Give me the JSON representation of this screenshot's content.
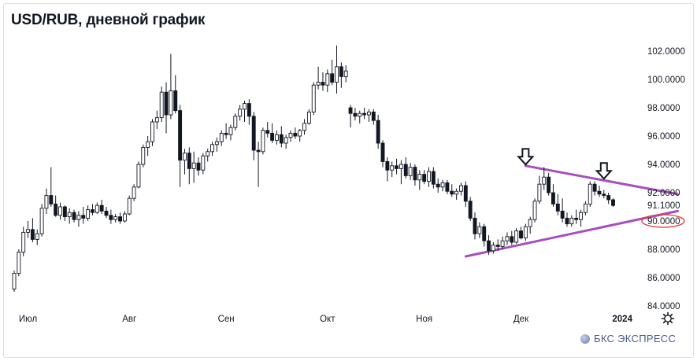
{
  "title": "USD/RUB, дневной график",
  "brand": "БКС ЭКСПРЕСС",
  "icons": {
    "settings": "gear-icon",
    "brand_logo": "bks-logo-icon",
    "marker": "down-arrow-icon"
  },
  "colors": {
    "up": "#ffffff",
    "down": "#131722",
    "trendline": "#a64fbd",
    "highlight": "#e03a3a",
    "grid": "#f0f3fa"
  },
  "chart_data": {
    "type": "candlestick",
    "title": "USD/RUB, дневной график",
    "ylim": [
      84,
      103
    ],
    "y_ticks": [
      "102.0000",
      "100.0000",
      "98.0000",
      "96.0000",
      "94.0000",
      "92.0000",
      "91.1000",
      "90.0000",
      "88.0000",
      "86.0000",
      "84.0000"
    ],
    "highlighted_tick": "90.0000",
    "x_labels": [
      "Июл",
      "Авг",
      "Сен",
      "Окт",
      "Ноя",
      "Дек",
      "2024"
    ],
    "x_label_index": [
      3,
      25,
      46,
      68,
      89,
      110,
      132
    ],
    "candles": [
      [
        85.2,
        86.5,
        85.0,
        86.3
      ],
      [
        86.3,
        88.0,
        86.1,
        87.8
      ],
      [
        87.8,
        89.6,
        87.5,
        89.2
      ],
      [
        89.2,
        90.0,
        88.8,
        89.4
      ],
      [
        89.4,
        90.2,
        88.5,
        88.7
      ],
      [
        88.7,
        89.4,
        88.3,
        89.1
      ],
      [
        89.1,
        91.2,
        88.9,
        90.9
      ],
      [
        90.9,
        92.3,
        90.5,
        91.8
      ],
      [
        91.8,
        93.8,
        91.0,
        91.2
      ],
      [
        91.2,
        91.8,
        90.3,
        90.4
      ],
      [
        90.4,
        91.3,
        90.1,
        91.0
      ],
      [
        91.0,
        91.1,
        90.0,
        90.3
      ],
      [
        90.3,
        90.9,
        89.8,
        90.6
      ],
      [
        90.6,
        90.8,
        89.9,
        90.1
      ],
      [
        90.1,
        90.7,
        89.6,
        90.4
      ],
      [
        90.4,
        91.0,
        89.8,
        90.2
      ],
      [
        90.2,
        91.1,
        90.0,
        90.8
      ],
      [
        90.8,
        91.2,
        90.4,
        90.6
      ],
      [
        90.6,
        91.3,
        90.5,
        91.1
      ],
      [
        91.1,
        91.5,
        90.5,
        90.7
      ],
      [
        90.7,
        91.0,
        90.2,
        90.4
      ],
      [
        90.4,
        90.8,
        89.8,
        90.1
      ],
      [
        90.1,
        90.5,
        89.9,
        90.3
      ],
      [
        90.3,
        90.6,
        89.8,
        90.0
      ],
      [
        90.0,
        90.7,
        89.9,
        90.5
      ],
      [
        90.5,
        91.8,
        90.4,
        91.6
      ],
      [
        91.6,
        92.6,
        91.4,
        92.4
      ],
      [
        92.4,
        94.2,
        92.3,
        94.0
      ],
      [
        94.0,
        95.4,
        93.8,
        95.2
      ],
      [
        95.2,
        96.0,
        94.6,
        95.6
      ],
      [
        95.6,
        97.2,
        95.3,
        97.0
      ],
      [
        97.0,
        97.8,
        96.5,
        97.3
      ],
      [
        97.3,
        99.5,
        97.0,
        99.1
      ],
      [
        99.1,
        99.8,
        96.2,
        97.5
      ],
      [
        97.5,
        101.8,
        97.2,
        99.2
      ],
      [
        99.2,
        100.3,
        97.6,
        97.8
      ],
      [
        97.8,
        98.2,
        92.4,
        94.3
      ],
      [
        94.3,
        95.1,
        93.3,
        94.8
      ],
      [
        94.8,
        95.2,
        92.6,
        93.7
      ],
      [
        93.7,
        94.9,
        92.7,
        94.1
      ],
      [
        94.1,
        94.5,
        93.2,
        93.6
      ],
      [
        93.6,
        94.8,
        93.3,
        94.6
      ],
      [
        94.6,
        95.1,
        94.2,
        94.9
      ],
      [
        94.9,
        95.6,
        94.6,
        95.4
      ],
      [
        95.4,
        95.9,
        94.9,
        95.6
      ],
      [
        95.6,
        96.4,
        95.3,
        96.2
      ],
      [
        96.2,
        96.9,
        95.8,
        96.1
      ],
      [
        96.1,
        96.8,
        95.7,
        96.6
      ],
      [
        96.6,
        97.6,
        96.4,
        97.4
      ],
      [
        97.4,
        98.2,
        97.1,
        97.9
      ],
      [
        97.9,
        98.5,
        97.0,
        98.3
      ],
      [
        98.3,
        98.6,
        96.8,
        97.4
      ],
      [
        97.4,
        97.7,
        94.3,
        95.0
      ],
      [
        95.0,
        95.6,
        92.4,
        94.9
      ],
      [
        94.9,
        96.6,
        94.7,
        96.4
      ],
      [
        96.4,
        97.0,
        95.9,
        96.2
      ],
      [
        96.2,
        96.9,
        95.5,
        95.7
      ],
      [
        95.7,
        96.4,
        95.4,
        96.1
      ],
      [
        96.1,
        96.7,
        95.2,
        95.5
      ],
      [
        95.5,
        96.1,
        95.1,
        95.9
      ],
      [
        95.9,
        96.4,
        95.6,
        96.2
      ],
      [
        96.2,
        96.6,
        95.8,
        96.0
      ],
      [
        96.0,
        96.5,
        95.6,
        96.4
      ],
      [
        96.4,
        97.2,
        96.1,
        96.9
      ],
      [
        96.9,
        97.9,
        96.8,
        97.7
      ],
      [
        97.7,
        99.8,
        97.5,
        99.6
      ],
      [
        99.6,
        100.9,
        99.3,
        99.8
      ],
      [
        99.8,
        100.5,
        99.2,
        99.6
      ],
      [
        99.6,
        100.7,
        99.1,
        100.4
      ],
      [
        100.4,
        101.4,
        99.6,
        99.8
      ],
      [
        99.8,
        102.4,
        99.0,
        100.9
      ],
      [
        100.9,
        101.2,
        99.4,
        100.2
      ],
      [
        100.2,
        101.0,
        99.8,
        100.6
      ],
      [
        98.0,
        98.2,
        96.6,
        97.6
      ],
      [
        97.6,
        98.0,
        97.1,
        97.4
      ],
      [
        97.4,
        97.8,
        96.9,
        97.6
      ],
      [
        97.6,
        98.0,
        97.2,
        97.5
      ],
      [
        97.5,
        97.9,
        97.0,
        97.7
      ],
      [
        97.7,
        97.9,
        96.8,
        97.1
      ],
      [
        97.1,
        97.5,
        95.1,
        95.5
      ],
      [
        95.5,
        95.7,
        93.8,
        94.2
      ],
      [
        94.2,
        94.5,
        92.8,
        93.6
      ],
      [
        93.6,
        94.2,
        93.1,
        93.9
      ],
      [
        93.9,
        94.4,
        93.3,
        93.7
      ],
      [
        93.7,
        94.3,
        92.6,
        94.0
      ],
      [
        94.0,
        94.5,
        93.0,
        93.2
      ],
      [
        93.2,
        94.1,
        92.9,
        93.8
      ],
      [
        93.8,
        94.0,
        92.5,
        92.9
      ],
      [
        92.9,
        93.6,
        92.2,
        93.3
      ],
      [
        93.3,
        93.6,
        92.6,
        92.8
      ],
      [
        92.8,
        93.8,
        92.4,
        93.5
      ],
      [
        93.5,
        93.8,
        92.3,
        92.6
      ],
      [
        92.6,
        93.0,
        92.0,
        92.4
      ],
      [
        92.4,
        92.9,
        92.1,
        92.7
      ],
      [
        92.7,
        92.9,
        91.9,
        92.1
      ],
      [
        92.1,
        92.6,
        91.7,
        91.9
      ],
      [
        91.9,
        92.3,
        91.5,
        92.1
      ],
      [
        92.1,
        92.7,
        91.8,
        92.5
      ],
      [
        92.5,
        92.8,
        91.0,
        91.4
      ],
      [
        91.4,
        91.7,
        90.0,
        90.2
      ],
      [
        90.2,
        90.6,
        88.7,
        89.1
      ],
      [
        89.1,
        89.9,
        88.8,
        89.6
      ],
      [
        89.6,
        89.8,
        88.2,
        88.6
      ],
      [
        88.6,
        89.0,
        87.6,
        87.9
      ],
      [
        87.9,
        88.5,
        87.7,
        88.3
      ],
      [
        88.3,
        88.7,
        87.9,
        88.2
      ],
      [
        88.2,
        88.9,
        88.0,
        88.6
      ],
      [
        88.6,
        89.2,
        88.3,
        88.9
      ],
      [
        88.9,
        89.3,
        88.3,
        88.5
      ],
      [
        88.5,
        89.5,
        88.4,
        89.3
      ],
      [
        89.3,
        89.6,
        88.7,
        88.8
      ],
      [
        88.8,
        89.8,
        88.6,
        89.6
      ],
      [
        89.6,
        90.3,
        89.1,
        90.1
      ],
      [
        90.1,
        91.6,
        89.9,
        91.4
      ],
      [
        91.4,
        93.2,
        91.2,
        92.6
      ],
      [
        92.6,
        93.8,
        92.2,
        93.1
      ],
      [
        93.1,
        93.4,
        91.8,
        92.0
      ],
      [
        92.0,
        92.6,
        91.0,
        91.2
      ],
      [
        91.2,
        91.9,
        90.4,
        90.7
      ],
      [
        90.7,
        91.6,
        89.9,
        90.2
      ],
      [
        90.2,
        90.6,
        89.6,
        89.8
      ],
      [
        89.8,
        90.4,
        89.6,
        90.2
      ],
      [
        90.2,
        90.8,
        89.8,
        90.1
      ],
      [
        90.1,
        90.8,
        89.6,
        90.6
      ],
      [
        90.6,
        91.4,
        90.4,
        91.2
      ],
      [
        91.2,
        92.8,
        91.0,
        92.6
      ],
      [
        92.6,
        92.8,
        91.8,
        92.1
      ],
      [
        92.1,
        92.5,
        91.7,
        91.9
      ],
      [
        91.9,
        92.2,
        91.6,
        91.8
      ],
      [
        91.8,
        92.0,
        91.2,
        91.5
      ],
      [
        91.5,
        91.6,
        91.0,
        91.1
      ]
    ],
    "trendlines": [
      {
        "from": [
          111,
          93.9
        ],
        "to": [
          144,
          91.9
        ]
      },
      {
        "from": [
          98,
          87.5
        ],
        "to": [
          144,
          90.7
        ]
      }
    ],
    "markers": [
      {
        "type": "down-arrow",
        "index": 111,
        "value": 95.1
      },
      {
        "type": "down-arrow",
        "index": 128,
        "value": 94.1
      }
    ]
  }
}
